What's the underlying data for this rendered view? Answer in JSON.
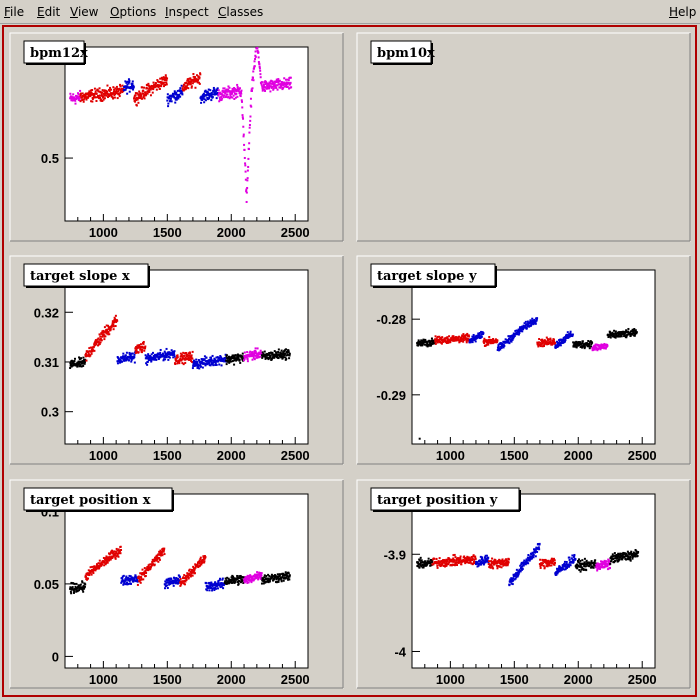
{
  "menubar": {
    "items": [
      {
        "key": "F",
        "rest": "ile",
        "name": "menu-file"
      },
      {
        "key": "E",
        "rest": "dit",
        "name": "menu-edit"
      },
      {
        "key": "V",
        "rest": "iew",
        "name": "menu-view"
      },
      {
        "key": "O",
        "rest": "ptions",
        "name": "menu-options"
      },
      {
        "key": "I",
        "rest": "nspect",
        "name": "menu-inspect"
      },
      {
        "key": "C",
        "rest": "lasses",
        "name": "menu-classes"
      }
    ],
    "help": {
      "key": "H",
      "rest": "elp"
    }
  },
  "colors": {
    "black": "#000000",
    "red": "#e00000",
    "blue": "#0000d0",
    "magenta": "#e000e0"
  },
  "chart_data": [
    {
      "type": "scatter",
      "title": "bpm12x",
      "panel": 0,
      "xlim": [
        700,
        2600
      ],
      "ylim": [
        0.33,
        0.8
      ],
      "xticks": [
        1000,
        1500,
        2000,
        2500
      ],
      "yticks": [
        0.5
      ],
      "ytick_labels": [
        "0.5"
      ],
      "segments": [
        {
          "color": "magenta",
          "x": [
            740,
            820
          ],
          "base": 0.66,
          "amp": 0.015,
          "freq": 0.05,
          "noise": 0.02
        },
        {
          "color": "red",
          "x": [
            820,
            1160
          ],
          "base": 0.665,
          "amp": 0.03,
          "freq": 0.025,
          "noise": 0.02
        },
        {
          "color": "blue",
          "x": [
            1160,
            1240
          ],
          "base": 0.69,
          "amp": 0.05,
          "freq": 0.04,
          "noise": 0.02
        },
        {
          "color": "red",
          "x": [
            1240,
            1500
          ],
          "base": 0.66,
          "amp": 0.08,
          "freq": 0.045,
          "noise": 0.02
        },
        {
          "color": "blue",
          "x": [
            1500,
            1620
          ],
          "base": 0.66,
          "amp": 0.05,
          "freq": 0.05,
          "noise": 0.02
        },
        {
          "color": "red",
          "x": [
            1620,
            1760
          ],
          "base": 0.69,
          "amp": 0.07,
          "freq": 0.05,
          "noise": 0.02
        },
        {
          "color": "blue",
          "x": [
            1760,
            1900
          ],
          "base": 0.665,
          "amp": 0.04,
          "freq": 0.04,
          "noise": 0.02
        },
        {
          "color": "magenta",
          "x": [
            1900,
            2470
          ],
          "base": 0.67,
          "amp": 0.03,
          "freq": 0.04,
          "noise": 0.02,
          "spikes": [
            [
              2120,
              0.38,
              40
            ],
            [
              2200,
              0.79,
              40
            ]
          ]
        }
      ]
    },
    {
      "type": "scatter",
      "title": "bpm10x",
      "panel": 1,
      "empty": true
    },
    {
      "type": "scatter",
      "title": "target slope x",
      "panel": 2,
      "xlim": [
        700,
        2600
      ],
      "ylim": [
        0.2935,
        0.3285
      ],
      "xticks": [
        1000,
        1500,
        2000,
        2500
      ],
      "yticks": [
        0.3,
        0.31,
        0.32
      ],
      "ytick_labels": [
        "0.3",
        "0.31",
        "0.32"
      ],
      "segments": [
        {
          "color": "black",
          "x": [
            740,
            860
          ],
          "base": 0.3095,
          "amp": 0.001,
          "freq": 0.05,
          "noise": 0.0012
        },
        {
          "color": "red",
          "x": [
            860,
            1110
          ],
          "base": 0.311,
          "amp": 0.012,
          "freq": 0.045,
          "noise": 0.0015
        },
        {
          "color": "blue",
          "x": [
            1110,
            1250
          ],
          "base": 0.3105,
          "amp": 0.0015,
          "freq": 0.05,
          "noise": 0.0012
        },
        {
          "color": "red",
          "x": [
            1250,
            1330
          ],
          "base": 0.3125,
          "amp": 0.002,
          "freq": 0.06,
          "noise": 0.0012
        },
        {
          "color": "blue",
          "x": [
            1330,
            1560
          ],
          "base": 0.3105,
          "amp": 0.0025,
          "freq": 0.04,
          "noise": 0.0012
        },
        {
          "color": "red",
          "x": [
            1560,
            1700
          ],
          "base": 0.3105,
          "amp": 0.0012,
          "freq": 0.06,
          "noise": 0.0012
        },
        {
          "color": "blue",
          "x": [
            1700,
            1960
          ],
          "base": 0.3095,
          "amp": 0.002,
          "freq": 0.04,
          "noise": 0.0012
        },
        {
          "color": "black",
          "x": [
            1960,
            2100
          ],
          "base": 0.3105,
          "amp": 0.001,
          "freq": 0.05,
          "noise": 0.0012
        },
        {
          "color": "magenta",
          "x": [
            2100,
            2240
          ],
          "base": 0.311,
          "amp": 0.002,
          "freq": 0.05,
          "noise": 0.0012
        },
        {
          "color": "black",
          "x": [
            2240,
            2460
          ],
          "base": 0.311,
          "amp": 0.0012,
          "freq": 0.05,
          "noise": 0.0012
        }
      ]
    },
    {
      "type": "scatter",
      "title": "target slope y",
      "panel": 3,
      "xlim": [
        700,
        2600
      ],
      "ylim": [
        -0.2965,
        -0.2735
      ],
      "xticks": [
        1000,
        1500,
        2000,
        2500
      ],
      "yticks": [
        -0.29,
        -0.28
      ],
      "ytick_labels": [
        "-0.29",
        "-0.28"
      ],
      "segments": [
        {
          "color": "black",
          "x": [
            740,
            880
          ],
          "base": -0.2832,
          "amp": 0.0003,
          "freq": 0.05,
          "noise": 0.0006
        },
        {
          "color": "red",
          "x": [
            880,
            1150
          ],
          "base": -0.2828,
          "amp": 0.0004,
          "freq": 0.05,
          "noise": 0.0006
        },
        {
          "color": "blue",
          "x": [
            1150,
            1260
          ],
          "base": -0.283,
          "amp": 0.0035,
          "freq": 0.05,
          "noise": 0.0006
        },
        {
          "color": "red",
          "x": [
            1260,
            1370
          ],
          "base": -0.283,
          "amp": 0.0005,
          "freq": 0.06,
          "noise": 0.0006
        },
        {
          "color": "blue",
          "x": [
            1370,
            1680
          ],
          "base": -0.284,
          "amp": 0.0055,
          "freq": 0.045,
          "noise": 0.0006
        },
        {
          "color": "red",
          "x": [
            1680,
            1820
          ],
          "base": -0.2832,
          "amp": 0.0006,
          "freq": 0.06,
          "noise": 0.0006
        },
        {
          "color": "blue",
          "x": [
            1820,
            1960
          ],
          "base": -0.2835,
          "amp": 0.0045,
          "freq": 0.045,
          "noise": 0.0006
        },
        {
          "color": "black",
          "x": [
            1960,
            2110
          ],
          "base": -0.2834,
          "amp": 0.0004,
          "freq": 0.05,
          "noise": 0.0006
        },
        {
          "color": "magenta",
          "x": [
            2110,
            2230
          ],
          "base": -0.2838,
          "amp": 0.0008,
          "freq": 0.05,
          "noise": 0.0006
        },
        {
          "color": "black",
          "x": [
            2230,
            2460
          ],
          "base": -0.2822,
          "amp": 0.0006,
          "freq": 0.05,
          "noise": 0.0006
        }
      ],
      "outliers": [
        [
          760,
          -0.2958
        ]
      ]
    },
    {
      "type": "scatter",
      "title": "target position x",
      "panel": 4,
      "xlim": [
        700,
        2600
      ],
      "ylim": [
        -0.008,
        0.112
      ],
      "xticks": [
        1000,
        1500,
        2000,
        2500
      ],
      "yticks": [
        0,
        0.05,
        0.1
      ],
      "ytick_labels": [
        "0",
        "0.05",
        "0.1"
      ],
      "segments": [
        {
          "color": "black",
          "x": [
            740,
            860
          ],
          "base": 0.047,
          "amp": 0.003,
          "freq": 0.05,
          "noise": 0.004
        },
        {
          "color": "red",
          "x": [
            860,
            1140
          ],
          "base": 0.055,
          "amp": 0.03,
          "freq": 0.04,
          "noise": 0.004
        },
        {
          "color": "blue",
          "x": [
            1140,
            1270
          ],
          "base": 0.052,
          "amp": 0.006,
          "freq": 0.05,
          "noise": 0.004
        },
        {
          "color": "red",
          "x": [
            1270,
            1480
          ],
          "base": 0.052,
          "amp": 0.045,
          "freq": 0.04,
          "noise": 0.004
        },
        {
          "color": "blue",
          "x": [
            1480,
            1600
          ],
          "base": 0.05,
          "amp": 0.008,
          "freq": 0.05,
          "noise": 0.004
        },
        {
          "color": "red",
          "x": [
            1600,
            1800
          ],
          "base": 0.05,
          "amp": 0.035,
          "freq": 0.045,
          "noise": 0.004
        },
        {
          "color": "blue",
          "x": [
            1800,
            1950
          ],
          "base": 0.048,
          "amp": 0.005,
          "freq": 0.05,
          "noise": 0.004
        },
        {
          "color": "black",
          "x": [
            1950,
            2100
          ],
          "base": 0.052,
          "amp": 0.003,
          "freq": 0.05,
          "noise": 0.004
        },
        {
          "color": "magenta",
          "x": [
            2100,
            2240
          ],
          "base": 0.052,
          "amp": 0.012,
          "freq": 0.05,
          "noise": 0.004
        },
        {
          "color": "black",
          "x": [
            2240,
            2460
          ],
          "base": 0.053,
          "amp": 0.004,
          "freq": 0.05,
          "noise": 0.004
        }
      ]
    },
    {
      "type": "scatter",
      "title": "target position y",
      "panel": 5,
      "xlim": [
        700,
        2600
      ],
      "ylim": [
        -4.017,
        -3.838
      ],
      "xticks": [
        1000,
        1500,
        2000,
        2500
      ],
      "yticks": [
        -4,
        -3.9
      ],
      "ytick_labels": [
        "-4",
        "-3.9"
      ],
      "segments": [
        {
          "color": "black",
          "x": [
            740,
            860
          ],
          "base": -3.91,
          "amp": 0.003,
          "freq": 0.05,
          "noise": 0.006
        },
        {
          "color": "red",
          "x": [
            860,
            1200
          ],
          "base": -3.909,
          "amp": 0.004,
          "freq": 0.05,
          "noise": 0.006
        },
        {
          "color": "blue",
          "x": [
            1200,
            1300
          ],
          "base": -3.91,
          "amp": 0.02,
          "freq": 0.05,
          "noise": 0.006
        },
        {
          "color": "red",
          "x": [
            1300,
            1460
          ],
          "base": -3.91,
          "amp": 0.004,
          "freq": 0.06,
          "noise": 0.006
        },
        {
          "color": "blue",
          "x": [
            1460,
            1700
          ],
          "base": -3.93,
          "amp": 0.07,
          "freq": 0.04,
          "noise": 0.006
        },
        {
          "color": "red",
          "x": [
            1700,
            1820
          ],
          "base": -3.91,
          "amp": 0.008,
          "freq": 0.06,
          "noise": 0.006
        },
        {
          "color": "blue",
          "x": [
            1820,
            1980
          ],
          "base": -3.92,
          "amp": 0.04,
          "freq": 0.045,
          "noise": 0.006
        },
        {
          "color": "black",
          "x": [
            1980,
            2140
          ],
          "base": -3.912,
          "amp": 0.004,
          "freq": 0.05,
          "noise": 0.006
        },
        {
          "color": "magenta",
          "x": [
            2140,
            2250
          ],
          "base": -3.912,
          "amp": 0.004,
          "freq": 0.05,
          "noise": 0.006
        },
        {
          "color": "black",
          "x": [
            2250,
            2470
          ],
          "base": -3.905,
          "amp": 0.01,
          "freq": 0.04,
          "noise": 0.006
        }
      ]
    }
  ]
}
